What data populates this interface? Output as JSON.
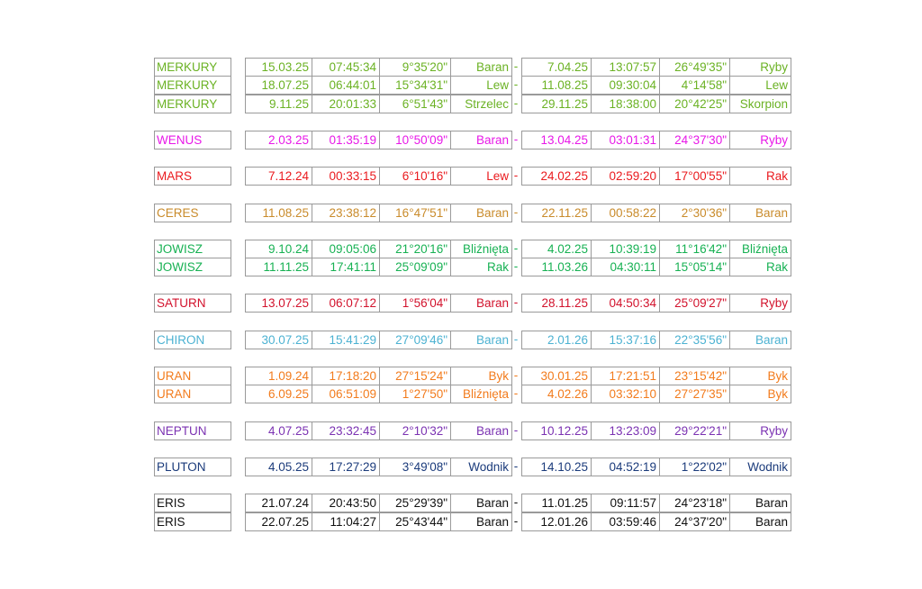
{
  "separator": "-",
  "groups": [
    {
      "color": "#6bb224",
      "rows": [
        [
          "MERKURY",
          "15.03.25",
          "07:45:34",
          "9°35'20\"",
          "Baran",
          "7.04.25",
          "13:07:57",
          "26°49'35\"",
          "Ryby"
        ],
        [
          "MERKURY",
          "18.07.25",
          "06:44:01",
          "15°34'31\"",
          "Lew",
          "11.08.25",
          "09:30:04",
          "4°14'58\"",
          "Lew"
        ],
        [
          "MERKURY",
          "9.11.25",
          "20:01:33",
          "6°51'43\"",
          "Strzelec",
          "29.11.25",
          "18:38:00",
          "20°42'25\"",
          "Skorpion"
        ]
      ]
    },
    {
      "color": "#e818e8",
      "rows": [
        [
          "WENUS",
          "2.03.25",
          "01:35:19",
          "10°50'09\"",
          "Baran",
          "13.04.25",
          "03:01:31",
          "24°37'30\"",
          "Ryby"
        ]
      ]
    },
    {
      "color": "#ea1a1e",
      "rows": [
        [
          "MARS",
          "7.12.24",
          "00:33:15",
          "6°10'16\"",
          "Lew",
          "24.02.25",
          "02:59:20",
          "17°00'55\"",
          "Rak"
        ]
      ]
    },
    {
      "color": "#c98b2b",
      "rows": [
        [
          "CERES",
          "11.08.25",
          "23:38:12",
          "16°47'51\"",
          "Baran",
          "22.11.25",
          "00:58:22",
          "2°30'36\"",
          "Baran"
        ]
      ]
    },
    {
      "color": "#17b153",
      "rows": [
        [
          "JOWISZ",
          "9.10.24",
          "09:05:06",
          "21°20'16\"",
          "Bliźnięta",
          "4.02.25",
          "10:39:19",
          "11°16'42\"",
          "Bliźnięta"
        ],
        [
          "JOWISZ",
          "11.11.25",
          "17:41:11",
          "25°09'09\"",
          "Rak",
          "11.03.26",
          "04:30:11",
          "15°05'14\"",
          "Rak"
        ]
      ]
    },
    {
      "color": "#d2122c",
      "rows": [
        [
          "SATURN",
          "13.07.25",
          "06:07:12",
          "1°56'04\"",
          "Baran",
          "28.11.25",
          "04:50:34",
          "25°09'27\"",
          "Ryby"
        ]
      ]
    },
    {
      "color": "#4cb2d2",
      "rows": [
        [
          "CHIRON",
          "30.07.25",
          "15:41:29",
          "27°09'46\"",
          "Baran",
          "2.01.26",
          "15:37:16",
          "22°35'56\"",
          "Baran"
        ]
      ]
    },
    {
      "color": "#f27b1c",
      "rows": [
        [
          "URAN",
          "1.09.24",
          "17:18:20",
          "27°15'24\"",
          "Byk",
          "30.01.25",
          "17:21:51",
          "23°15'42\"",
          "Byk"
        ],
        [
          "URAN",
          "6.09.25",
          "06:51:09",
          "1°27'50\"",
          "Bliźnięta",
          "4.02.26",
          "03:32:10",
          "27°27'35\"",
          "Byk"
        ]
      ]
    },
    {
      "color": "#7b32b2",
      "rows": [
        [
          "NEPTUN",
          "4.07.25",
          "23:32:45",
          "2°10'32\"",
          "Baran",
          "10.12.25",
          "13:23:09",
          "29°22'21\"",
          "Ryby"
        ]
      ]
    },
    {
      "color": "#1b3b7b",
      "rows": [
        [
          "PLUTON",
          "4.05.25",
          "17:27:29",
          "3°49'08\"",
          "Wodnik",
          "14.10.25",
          "04:52:19",
          "1°22'02\"",
          "Wodnik"
        ]
      ]
    },
    {
      "color": "#111111",
      "rows": [
        [
          "ERIS",
          "21.07.24",
          "20:43:50",
          "25°29'39\"",
          "Baran",
          "11.01.25",
          "09:11:57",
          "24°23'18\"",
          "Baran"
        ],
        [
          "ERIS",
          "22.07.25",
          "11:04:27",
          "25°43'44\"",
          "Baran",
          "12.01.26",
          "03:59:46",
          "24°37'20\"",
          "Baran"
        ]
      ]
    }
  ]
}
